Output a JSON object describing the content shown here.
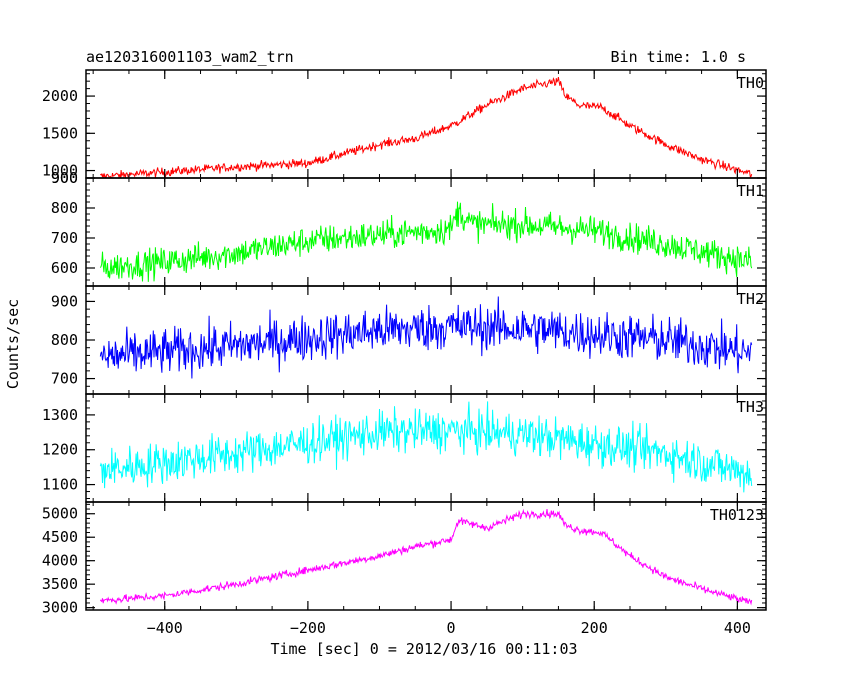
{
  "chart_data": {
    "type": "line",
    "title": "ae120316001103_wam2_trn",
    "subtitle": "Bin time: 1.0 s",
    "xlabel": "Time [sec] 0 = 2012/03/16 00:11:03",
    "ylabel": "Counts/sec",
    "xlim": [
      -510,
      440
    ],
    "xticks": [
      -400,
      -200,
      0,
      200,
      400
    ],
    "grid": false,
    "panels": [
      {
        "name": "TH0",
        "color": "#ff0000",
        "ylim": [
          900,
          2350
        ],
        "yticks": [
          900,
          1000,
          1500,
          2000
        ],
        "noise": 55,
        "x": [
          -490,
          -400,
          -300,
          -200,
          -100,
          -50,
          0,
          50,
          100,
          150,
          160,
          180,
          210,
          250,
          300,
          350,
          420
        ],
        "y": [
          920,
          980,
          1050,
          1100,
          1350,
          1430,
          1600,
          1880,
          2100,
          2200,
          2000,
          1870,
          1850,
          1600,
          1350,
          1150,
          950
        ]
      },
      {
        "name": "TH1",
        "color": "#00ff00",
        "ylim": [
          540,
          900
        ],
        "yticks": [
          600,
          700,
          800,
          900
        ],
        "noise": 45,
        "x": [
          -490,
          -400,
          -300,
          -200,
          -100,
          0,
          10,
          30,
          100,
          200,
          300,
          420
        ],
        "y": [
          600,
          620,
          650,
          690,
          710,
          730,
          790,
          745,
          745,
          725,
          680,
          620
        ]
      },
      {
        "name": "TH2",
        "color": "#0000ff",
        "ylim": [
          660,
          940
        ],
        "yticks": [
          700,
          800,
          900
        ],
        "noise": 55,
        "x": [
          -490,
          -300,
          -100,
          0,
          100,
          300,
          420
        ],
        "y": [
          755,
          785,
          825,
          835,
          830,
          800,
          765
        ]
      },
      {
        "name": "TH3",
        "color": "#00ffff",
        "ylim": [
          1050,
          1360
        ],
        "yticks": [
          1100,
          1200,
          1300
        ],
        "noise": 55,
        "x": [
          -490,
          -300,
          -100,
          0,
          100,
          300,
          420
        ],
        "y": [
          1140,
          1190,
          1250,
          1255,
          1245,
          1190,
          1130
        ]
      },
      {
        "name": "TH0123",
        "color": "#ff00ff",
        "ylim": [
          2950,
          5250
        ],
        "yticks": [
          3000,
          3500,
          4000,
          4500,
          5000
        ],
        "noise": 75,
        "x": [
          -490,
          -400,
          -300,
          -200,
          -100,
          -50,
          0,
          10,
          50,
          100,
          150,
          160,
          180,
          210,
          250,
          300,
          350,
          420
        ],
        "y": [
          3150,
          3250,
          3500,
          3800,
          4100,
          4300,
          4450,
          4850,
          4700,
          5000,
          5000,
          4750,
          4650,
          4600,
          4100,
          3650,
          3400,
          3100
        ]
      }
    ]
  }
}
